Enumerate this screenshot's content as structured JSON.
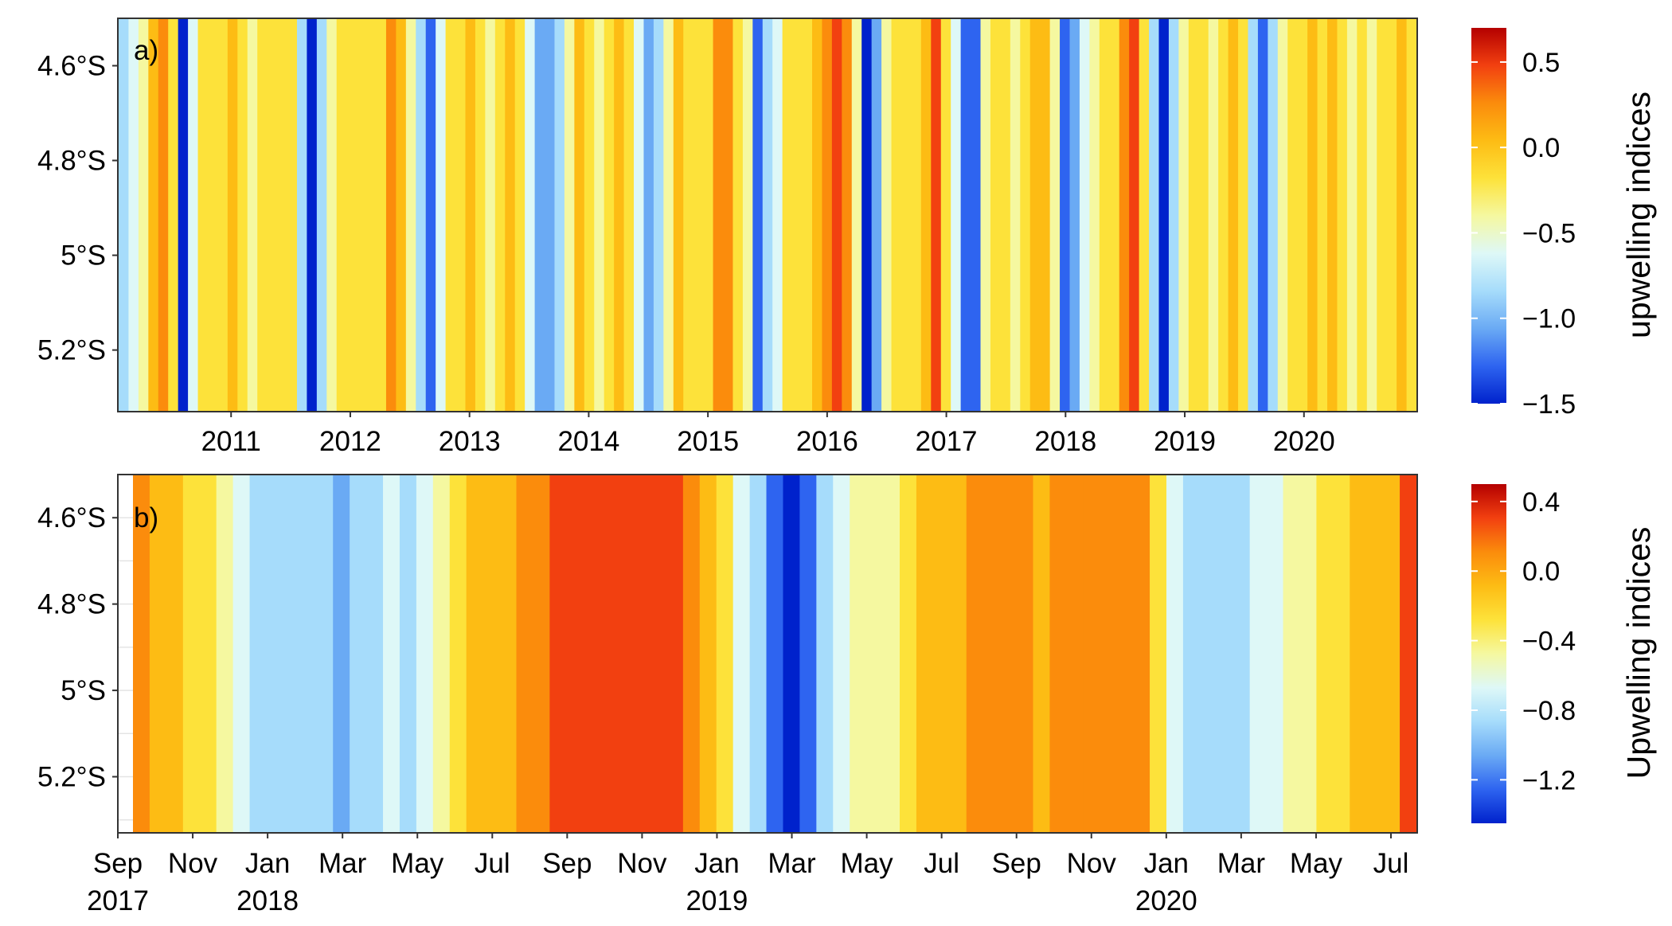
{
  "chart_data": [
    {
      "type": "heatmap",
      "panel_label": "a)",
      "x_ticks": [
        "2011",
        "2012",
        "2013",
        "2014",
        "2015",
        "2016",
        "2017",
        "2018",
        "2019",
        "2020"
      ],
      "xlim": [
        2010.05,
        2020.95
      ],
      "y_ticks": [
        "4.6°S",
        "4.8°S",
        "5°S",
        "5.2°S"
      ],
      "ylim_south_deg": [
        4.5,
        5.33
      ],
      "colorbar": {
        "label": "upwelling indices",
        "ticks": [
          "0.5",
          "0.0",
          "−0.5",
          "−1.0",
          "−1.5"
        ],
        "range": [
          -1.5,
          0.7
        ],
        "colors": [
          "#0022cc",
          "#2e64f0",
          "#6aaaf4",
          "#a6dcfb",
          "#def8f7",
          "#f5f8a0",
          "#fde23a",
          "#fdbc14",
          "#fb8c0c",
          "#f24010",
          "#b40000"
        ]
      },
      "values_sampled_monthly_index": [
        -0.75,
        -0.55,
        -0.35,
        0.05,
        0.15,
        -0.3,
        -1.4,
        -0.7,
        -0.2,
        -0.1,
        -0.15,
        -0.05,
        -0.2,
        -0.35,
        -0.3,
        -0.2,
        -0.25,
        -0.3,
        -0.9,
        -1.45,
        -0.75,
        -0.35,
        -0.25,
        -0.1,
        -0.15,
        -0.25,
        -0.1,
        0.1,
        0.0,
        -0.45,
        -0.9,
        -1.1,
        -0.7,
        -0.3,
        -0.1,
        -0.05,
        -0.25,
        -0.35,
        -0.15,
        0.0,
        -0.15,
        -0.55,
        -0.95,
        -1.0,
        -0.8,
        -0.35,
        -0.05,
        -0.25,
        -0.4,
        -0.1,
        0.05,
        -0.2,
        -0.7,
        -1.0,
        -0.8,
        -0.35,
        -0.05,
        -0.2,
        -0.25,
        -0.15,
        0.1,
        0.2,
        -0.1,
        -0.5,
        -1.2,
        -0.9,
        -0.6,
        -0.3,
        -0.2,
        -0.15,
        -0.05,
        0.2,
        0.45,
        0.1,
        -0.4,
        -1.5,
        -1.0,
        -0.5,
        -0.2,
        -0.15,
        -0.1,
        0.05,
        0.4,
        -0.1,
        -0.7,
        -1.2,
        -1.1,
        -0.5,
        -0.3,
        -0.2,
        -0.35,
        -0.15,
        0.05,
        0.0,
        -0.4,
        -1.2,
        -1.0,
        -0.7,
        -0.35,
        -0.15,
        -0.1,
        0.15,
        0.4,
        -0.2,
        -0.85,
        -1.5,
        -0.9,
        -0.5,
        -0.25,
        -0.15,
        -0.45,
        -0.2,
        0.0,
        -0.3,
        -0.75,
        -1.1,
        -0.8,
        -0.45,
        -0.2,
        -0.1,
        -0.05,
        -0.1,
        0.0,
        -0.15,
        -0.4,
        -0.2,
        -0.35,
        -0.3,
        -0.15,
        -0.05,
        -0.2
      ]
    },
    {
      "type": "heatmap",
      "panel_label": "b)",
      "x_tick_labels": [
        [
          "Sep",
          "2017"
        ],
        [
          "Nov",
          ""
        ],
        [
          "Jan",
          "2018"
        ],
        [
          "Mar",
          ""
        ],
        [
          "May",
          ""
        ],
        [
          "Jul",
          ""
        ],
        [
          "Sep",
          ""
        ],
        [
          "Nov",
          ""
        ],
        [
          "Jan",
          "2019"
        ],
        [
          "Mar",
          ""
        ],
        [
          "May",
          ""
        ],
        [
          "Jul",
          ""
        ],
        [
          "Sep",
          ""
        ],
        [
          "Nov",
          ""
        ],
        [
          "Jan",
          "2020"
        ],
        [
          "Mar",
          ""
        ],
        [
          "May",
          ""
        ],
        [
          "Jul",
          ""
        ]
      ],
      "y_ticks": [
        "4.6°S",
        "4.8°S",
        "5°S",
        "5.2°S"
      ],
      "ylim_south_deg": [
        4.5,
        5.33
      ],
      "colorbar": {
        "label": "Upwelling indices",
        "ticks": [
          "0.4",
          "0.0",
          "−0.4",
          "−0.8",
          "−1.2"
        ],
        "range": [
          -1.45,
          0.5
        ],
        "colors": [
          "#0022cc",
          "#2e64f0",
          "#6aaaf4",
          "#a6dcfb",
          "#def8f7",
          "#f5f8a0",
          "#fde23a",
          "#fdbc14",
          "#fb8c0c",
          "#f24010",
          "#b40000"
        ]
      },
      "values_sampled_weekly_index": [
        0.1,
        -0.05,
        -0.15,
        -0.25,
        -0.3,
        -0.5,
        -0.7,
        -0.85,
        -0.9,
        -0.9,
        -0.85,
        -0.9,
        -0.95,
        -0.9,
        -0.8,
        -0.7,
        -0.75,
        -0.6,
        -0.4,
        -0.25,
        -0.2,
        -0.1,
        -0.1,
        0.0,
        0.05,
        0.15,
        0.2,
        0.25,
        0.2,
        0.15,
        0.25,
        0.3,
        0.2,
        0.0,
        -0.1,
        -0.35,
        -0.6,
        -0.9,
        -1.1,
        -1.3,
        -1.2,
        -0.9,
        -0.7,
        -0.55,
        -0.45,
        -0.4,
        -0.3,
        -0.2,
        -0.15,
        -0.05,
        0.05,
        0.05,
        0.0,
        0.0,
        -0.05,
        0.0,
        0.0,
        0.05,
        0.05,
        0.1,
        0.0,
        -0.3,
        -0.6,
        -0.75,
        -0.8,
        -0.8,
        -0.75,
        -0.7,
        -0.65,
        -0.5,
        -0.4,
        -0.3,
        -0.25,
        -0.2,
        -0.1,
        -0.05,
        0.2
      ]
    }
  ]
}
